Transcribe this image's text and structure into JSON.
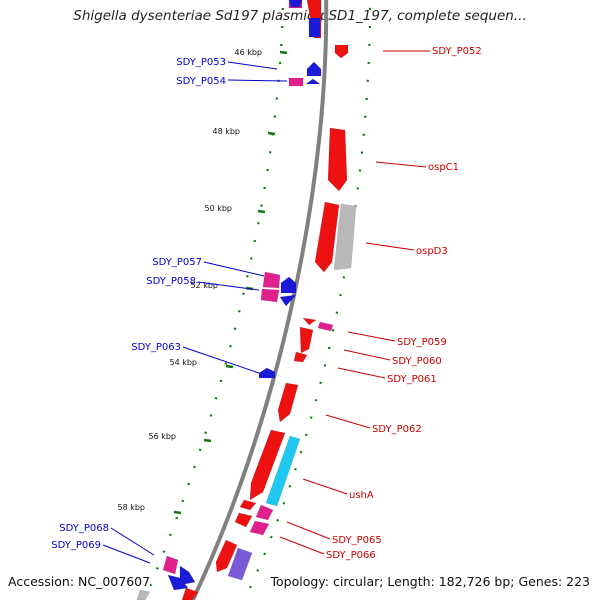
{
  "title": "Shigella dysenteriae Sd197 plasmid pSD1_197, complete sequen...",
  "accession": "Accession: NC_007607",
  "topology": "Topology: circular; Length: 182,726 bp; Genes: 223",
  "colors": {
    "backbone": "#808080",
    "forward_cds": "#ee1111",
    "reverse_cds": "#1a1ad8",
    "pseudo_gene": "#e0208c",
    "special_forward": "#b8b8b8",
    "special_cyan": "#1ec8f0",
    "special_purple": "#7a5ad8",
    "tick_green": "#117711",
    "label_red": "#cc0000",
    "label_blue": "#0000cc"
  },
  "scale_labels": [
    "46 kbp",
    "48 kbp",
    "50 kbp",
    "52 kbp",
    "54 kbp",
    "56 kbp",
    "58 kbp"
  ],
  "left_labels": [
    "SDY_P053",
    "SDY_P054",
    "SDY_P057",
    "SDY_P058",
    "SDY_P063",
    "SDY_P068",
    "SDY_P069"
  ],
  "right_labels": [
    "SDY_P052",
    "ospC1",
    "ospD3",
    "SDY_P059",
    "SDY_P060",
    "SDY_P061",
    "SDY_P062",
    "ushA",
    "SDY_P065",
    "SDY_P066"
  ]
}
